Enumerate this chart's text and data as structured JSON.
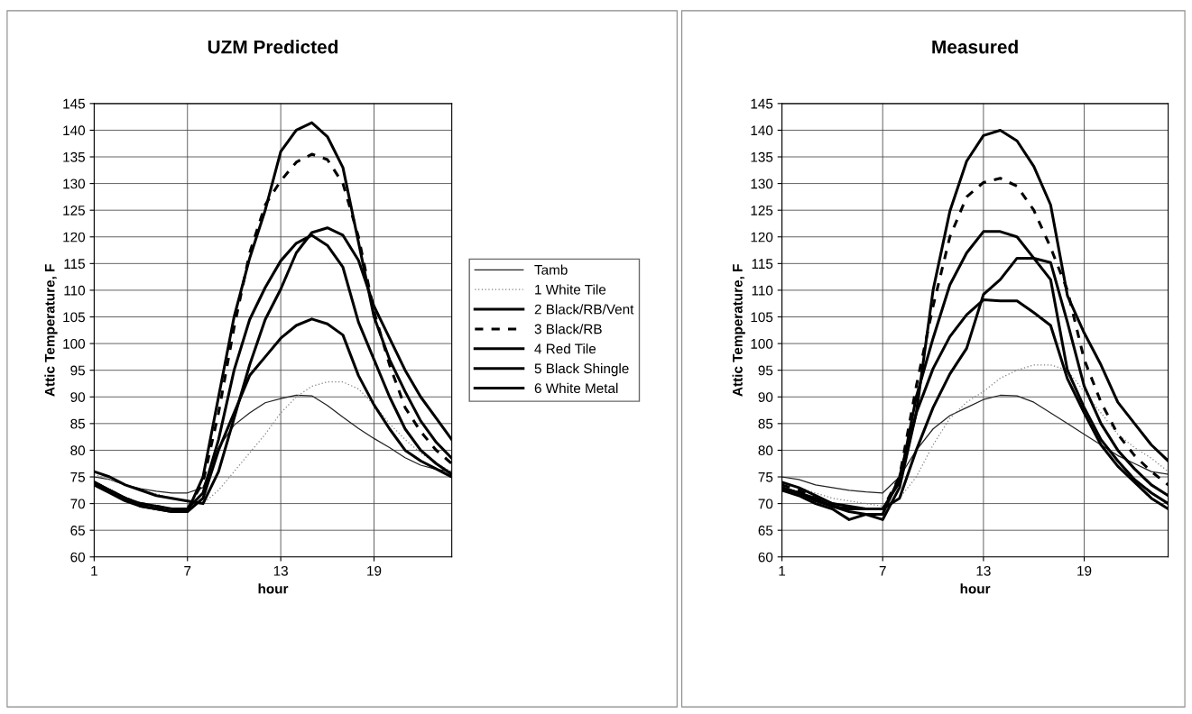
{
  "chart_data": [
    {
      "type": "line",
      "title": "UZM Predicted",
      "xlabel": "hour",
      "ylabel": "Attic Temperature, F",
      "x": [
        1,
        2,
        3,
        4,
        5,
        6,
        7,
        8,
        9,
        10,
        11,
        12,
        13,
        14,
        15,
        16,
        17,
        18,
        19,
        20,
        21,
        22,
        23,
        24
      ],
      "xlim": [
        1,
        24
      ],
      "xticks": [
        1,
        7,
        13,
        19
      ],
      "ylim": [
        60,
        145
      ],
      "yticks": [
        60,
        65,
        70,
        75,
        80,
        85,
        90,
        95,
        100,
        105,
        110,
        115,
        120,
        125,
        130,
        135,
        140,
        145
      ],
      "grid": true,
      "legend": "right",
      "series": [
        {
          "name": "Tamb",
          "color": "#222222",
          "values": [
            75,
            74.5,
            73.5,
            72.8,
            72.3,
            72,
            72,
            73,
            80.5,
            84.7,
            87,
            88.9,
            89.7,
            90.3,
            90.2,
            88.4,
            86.2,
            84.1,
            82.2,
            80.5,
            78.6,
            77.2,
            76.4,
            76
          ]
        },
        {
          "name": "1 White Tile",
          "color": "#808080",
          "line_style": "dotted",
          "values": [
            75.5,
            74.5,
            73.5,
            72.5,
            71.8,
            71,
            70.5,
            70,
            72.5,
            76,
            79.5,
            83,
            87,
            90,
            92,
            92.8,
            92.8,
            91.5,
            88.5,
            85,
            82,
            79.5,
            77.5,
            76
          ]
        },
        {
          "name": "2 Black/RB/Vent",
          "color": "#000000",
          "values": [
            74,
            72.5,
            71,
            70,
            69.5,
            69,
            69,
            72,
            82,
            95,
            104.5,
            110.5,
            115.5,
            118.8,
            120.3,
            118.4,
            114.3,
            104,
            97,
            90,
            84,
            80,
            77.5,
            75.5
          ]
        },
        {
          "name": "3 Black/RB",
          "color": "#000000",
          "line_style": "dashed",
          "values": [
            74,
            72.5,
            71,
            70,
            69.5,
            69,
            69,
            74,
            87,
            103,
            117,
            126,
            130.5,
            134,
            135.5,
            134.5,
            130,
            120,
            106,
            96,
            88,
            83.5,
            80,
            77.5
          ]
        },
        {
          "name": "4 Red Tile",
          "color": "#000000",
          "values": [
            76,
            75,
            73.5,
            72.5,
            71.5,
            71,
            70.5,
            70,
            76,
            86,
            96,
            104.5,
            110.2,
            117,
            120.8,
            121.7,
            120.3,
            115.6,
            107,
            101,
            95,
            90,
            86,
            82
          ]
        },
        {
          "name": "5 Black Shingle",
          "color": "#000000",
          "values": [
            74,
            72.5,
            71,
            69.5,
            69,
            68.5,
            68.5,
            75,
            90,
            105,
            116,
            125,
            136,
            140,
            141.4,
            138.8,
            133,
            119,
            105,
            97,
            91,
            85.5,
            81.5,
            78.5
          ]
        },
        {
          "name": "6 White Metal",
          "color": "#000000",
          "values": [
            73.5,
            72,
            70.5,
            69.5,
            69,
            68.5,
            68.5,
            71,
            80,
            87,
            94,
            97.5,
            101,
            103.4,
            104.6,
            103.7,
            101.6,
            94,
            88.5,
            84,
            80,
            78,
            76.5,
            75
          ]
        }
      ]
    },
    {
      "type": "line",
      "title": "Measured",
      "xlabel": "hour",
      "ylabel": "Attic Temperature, F",
      "x": [
        1,
        2,
        3,
        4,
        5,
        6,
        7,
        8,
        9,
        10,
        11,
        12,
        13,
        14,
        15,
        16,
        17,
        18,
        19,
        20,
        21,
        22,
        23,
        24
      ],
      "xlim": [
        1,
        24
      ],
      "xticks": [
        1,
        7,
        13,
        19
      ],
      "ylim": [
        60,
        145
      ],
      "yticks": [
        60,
        65,
        70,
        75,
        80,
        85,
        90,
        95,
        100,
        105,
        110,
        115,
        120,
        125,
        130,
        135,
        140,
        145
      ],
      "grid": true,
      "series": [
        {
          "color": "#222222",
          "values": [
            75,
            74.5,
            73.5,
            73,
            72.5,
            72.2,
            72,
            75,
            80,
            84,
            86.5,
            88,
            89.5,
            90.3,
            90.2,
            89,
            87,
            85,
            83,
            81,
            79,
            77.5,
            76,
            75.5
          ]
        },
        {
          "color": "#808080",
          "line_style": "dotted",
          "values": [
            74,
            73,
            72,
            71,
            70.5,
            70,
            69.5,
            71,
            75,
            81,
            86,
            89,
            91,
            93.5,
            95,
            96,
            96,
            95,
            91,
            87,
            83,
            80.5,
            78.5,
            76
          ]
        },
        {
          "color": "#000000",
          "values": [
            73,
            72,
            70.5,
            69.5,
            69,
            69,
            69,
            74,
            90,
            101,
            111,
            117,
            121,
            121,
            120,
            116,
            112,
            95,
            88,
            82,
            78,
            74.5,
            72,
            70
          ]
        },
        {
          "color": "#000000",
          "line_style": "dashed",
          "values": [
            73.5,
            72.5,
            71,
            70,
            69,
            69,
            69,
            75,
            92,
            107,
            120,
            127.5,
            130.2,
            131,
            129.5,
            125,
            118,
            110,
            97,
            89,
            83,
            79,
            76,
            73.5
          ]
        },
        {
          "color": "#000000",
          "values": [
            74,
            73,
            71.5,
            70,
            69.5,
            69,
            69,
            71,
            80,
            88,
            94.3,
            99.1,
            109.2,
            112,
            116,
            116,
            115.2,
            104,
            92,
            85,
            80,
            76.5,
            73.5,
            71.5
          ]
        },
        {
          "color": "#000000",
          "values": [
            73,
            72,
            71,
            69.5,
            68.5,
            68,
            68,
            75,
            87,
            110,
            124.8,
            134.2,
            139,
            140,
            138,
            133.2,
            126,
            109,
            102,
            96,
            89,
            85,
            81,
            78
          ]
        },
        {
          "color": "#000000",
          "values": [
            72.5,
            71.5,
            70,
            69,
            67,
            68,
            67,
            73,
            87,
            95.3,
            101.3,
            105.4,
            108.2,
            108,
            108,
            105.8,
            103.4,
            93.4,
            87,
            81,
            77,
            74,
            71,
            69
          ]
        }
      ]
    }
  ]
}
